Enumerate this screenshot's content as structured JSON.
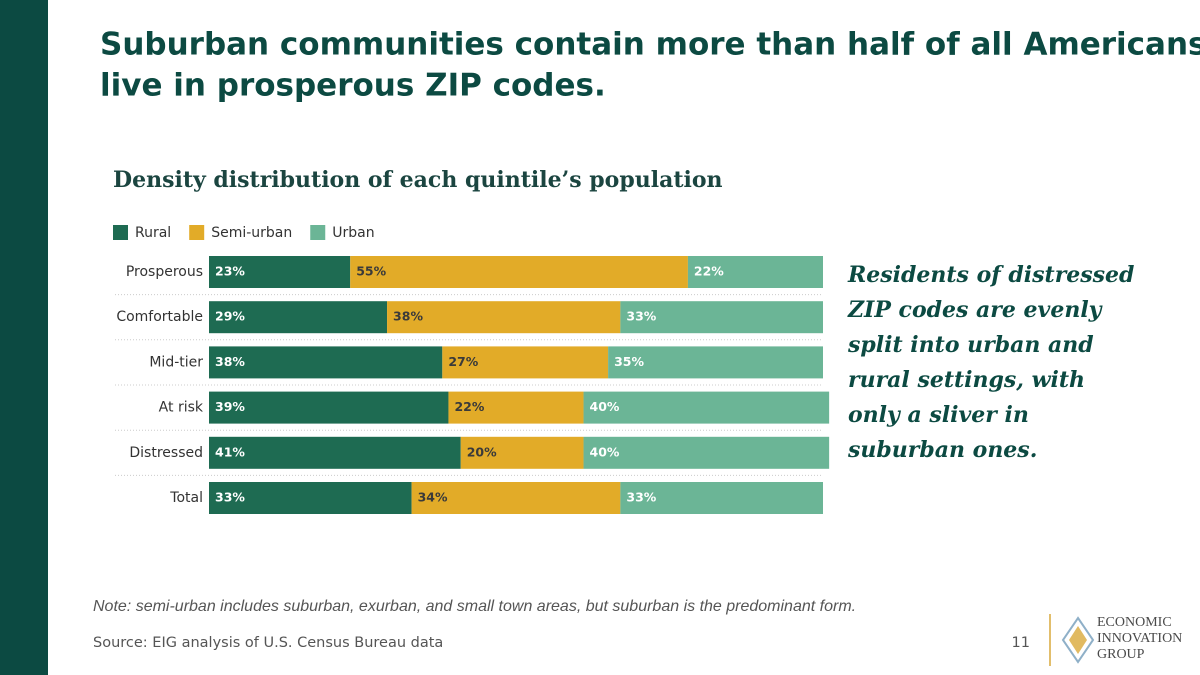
{
  "chart_data": {
    "type": "bar",
    "orientation": "horizontal",
    "stacked": true,
    "title": "Suburban communities contain more than half of all Americans who live in prosperous ZIP codes.",
    "title_lines": [
      "Suburban communities contain more than half of all Americans who",
      "live in prosperous ZIP codes."
    ],
    "subtitle": "Density distribution of each quintile’s population",
    "categories": [
      "Prosperous",
      "Comfortable",
      "Mid-tier",
      "At risk",
      "Distressed",
      "Total"
    ],
    "series": [
      {
        "name": "Rural",
        "color": "#1e6b52",
        "values": [
          23,
          29,
          38,
          39,
          41,
          33
        ],
        "value_labels": [
          "23%",
          "29%",
          "38%",
          "39%",
          "41%",
          "33%"
        ]
      },
      {
        "name": "Semi-urban",
        "color": "#e2ab28",
        "values": [
          55,
          38,
          27,
          22,
          20,
          34
        ],
        "value_labels": [
          "55%",
          "38%",
          "27%",
          "22%",
          "20%",
          "34%"
        ]
      },
      {
        "name": "Urban",
        "color": "#6bb596",
        "values": [
          22,
          33,
          35,
          40,
          40,
          33
        ],
        "value_labels": [
          "22%",
          "33%",
          "35%",
          "40%",
          "40%",
          "33%"
        ]
      }
    ],
    "xlim": [
      0,
      100
    ],
    "legend": "top-left",
    "annotation": [
      "Residents of distressed",
      "ZIP codes are evenly",
      "split into urban and",
      "rural settings, with",
      "only a sliver in",
      "suburban ones."
    ],
    "note": "Note: semi-urban includes suburban, exurban, and small town areas, but suburban is the predominant form.",
    "source": "Source: EIG analysis of U.S. Census Bureau data",
    "page_number": "11",
    "logo": [
      "ECONOMIC",
      "INNOVATION",
      "GROUP"
    ]
  }
}
